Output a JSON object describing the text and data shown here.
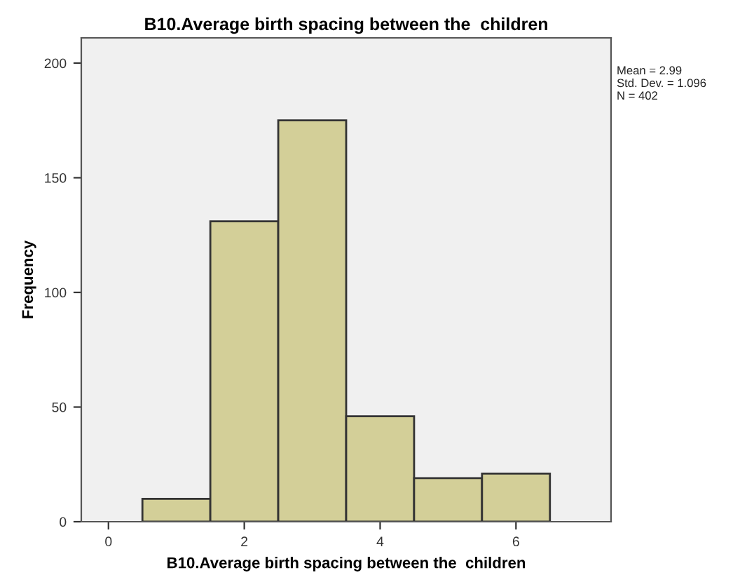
{
  "chart_data": {
    "type": "histogram",
    "title": "B10.Average birth spacing between the  children",
    "xlabel": "B10.Average birth spacing between the  children",
    "ylabel": "Frequency",
    "bins": [
      0.5,
      1.5,
      2.5,
      3.5,
      4.5,
      5.5,
      6.5
    ],
    "values": [
      10,
      131,
      175,
      46,
      19,
      21
    ],
    "color": "#d3cf98",
    "xlim": [
      -0.4,
      7.4
    ],
    "xticks": [
      0,
      2,
      4,
      6
    ],
    "ylim": [
      0,
      211
    ],
    "yticks": [
      0,
      50,
      100,
      150,
      200
    ],
    "grid": false,
    "annotations": [
      "Mean = 2.99\nStd. Dev. = 1.096\nN = 402"
    ]
  }
}
